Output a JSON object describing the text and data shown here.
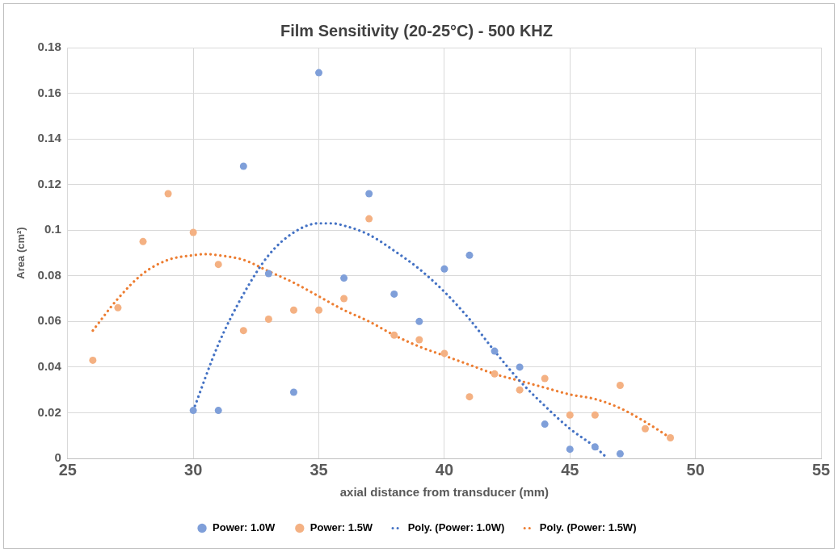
{
  "chart_data": {
    "type": "scatter",
    "title": "Film Sensitivity (20-25°C) - 500 KHZ",
    "xlabel": "axial distance from transducer (mm)",
    "ylabel": "Area (cm²)",
    "xlim": [
      25,
      55
    ],
    "xticks": [
      25,
      30,
      35,
      40,
      45,
      50,
      55
    ],
    "ylim": [
      0,
      0.18
    ],
    "yticks": [
      0,
      0.02,
      0.04,
      0.06,
      0.08,
      0.1,
      0.12,
      0.14,
      0.16,
      0.18
    ],
    "grid": true,
    "legend": "bottom",
    "series": [
      {
        "name": "Power: 1.0W",
        "marker": "circle",
        "color": "#7f9fd9",
        "x": [
          30,
          31,
          32,
          33,
          34,
          35,
          36,
          37,
          38,
          39,
          40,
          41,
          42,
          43,
          44,
          45,
          46,
          47
        ],
        "values": [
          0.021,
          0.021,
          0.128,
          0.081,
          0.029,
          0.169,
          0.079,
          0.116,
          0.072,
          0.06,
          0.083,
          0.089,
          0.047,
          0.04,
          0.015,
          0.004,
          0.005,
          0.002
        ]
      },
      {
        "name": "Power: 1.5W",
        "marker": "circle",
        "color": "#f4b183",
        "x": [
          26,
          27,
          28,
          29,
          30,
          31,
          32,
          33,
          34,
          35,
          36,
          37,
          38,
          39,
          40,
          41,
          42,
          43,
          44,
          45,
          46,
          47,
          48,
          49
        ],
        "values": [
          0.043,
          0.066,
          0.095,
          0.116,
          0.099,
          0.085,
          0.056,
          0.061,
          0.065,
          0.065,
          0.07,
          0.105,
          0.054,
          0.052,
          0.046,
          0.027,
          0.037,
          0.03,
          0.035,
          0.019,
          0.019,
          0.032,
          0.013,
          0.009
        ]
      },
      {
        "name": "Poly. (Power: 1.0W)",
        "type": "line",
        "marker": "none",
        "line_style": "dotted",
        "color": "#4472c4",
        "x": [
          30,
          31,
          32,
          33,
          34,
          35,
          35.5,
          36,
          37,
          38,
          39,
          40,
          41,
          42,
          43,
          44,
          45,
          46,
          46.5
        ],
        "values": [
          0.021,
          0.05,
          0.072,
          0.089,
          0.099,
          0.103,
          0.103,
          0.102,
          0.098,
          0.091,
          0.083,
          0.073,
          0.061,
          0.047,
          0.034,
          0.023,
          0.013,
          0.005,
          0
        ]
      },
      {
        "name": "Poly. (Power: 1.5W)",
        "type": "line",
        "marker": "none",
        "line_style": "dotted",
        "color": "#ed7d31",
        "x": [
          26,
          27,
          28,
          29,
          30,
          30.5,
          31,
          32,
          33,
          34,
          35,
          36,
          37,
          38,
          39,
          40,
          41,
          42,
          43,
          44,
          45,
          46,
          47,
          48,
          49
        ],
        "values": [
          0.056,
          0.07,
          0.081,
          0.087,
          0.089,
          0.0895,
          0.089,
          0.087,
          0.082,
          0.077,
          0.071,
          0.065,
          0.06,
          0.054,
          0.049,
          0.045,
          0.041,
          0.037,
          0.034,
          0.031,
          0.028,
          0.026,
          0.022,
          0.016,
          0.009
        ]
      }
    ]
  }
}
